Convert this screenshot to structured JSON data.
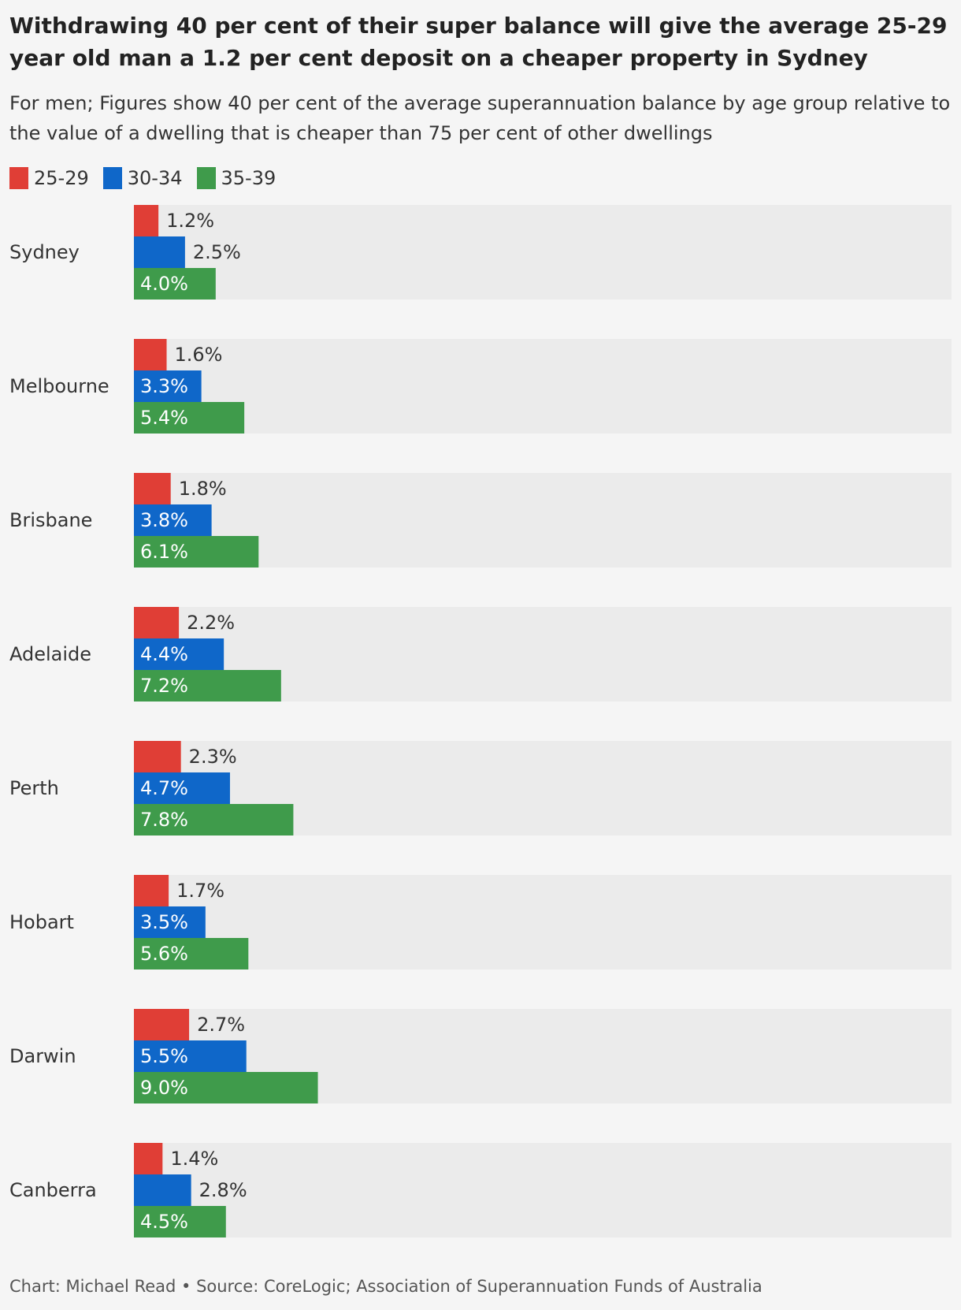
{
  "title": "Withdrawing 40 per cent of their super balance will give the average 25-29 year old man a 1.2 per cent deposit on a cheaper property in Sydney",
  "subtitle": "For men; Figures show 40 per cent of the average superannuation balance by age group relative to the value of a dwelling that is cheaper than 75 per cent of other dwellings",
  "footer": "Chart: Michael Read • Source: CoreLogic; Association of Superannuation Funds of Australia",
  "colors": {
    "track": "#ebebeb",
    "series": [
      "#e03e36",
      "#0f67c9",
      "#3f9b4b"
    ]
  },
  "chart_data": {
    "type": "bar",
    "orientation": "horizontal",
    "grid": false,
    "legend_position": "top-left",
    "xlim": [
      0,
      40
    ],
    "value_suffix": "%",
    "categories": [
      "Sydney",
      "Melbourne",
      "Brisbane",
      "Adelaide",
      "Perth",
      "Hobart",
      "Darwin",
      "Canberra"
    ],
    "series": [
      {
        "name": "25-29",
        "values": [
          1.2,
          1.6,
          1.8,
          2.2,
          2.3,
          1.7,
          2.7,
          1.4
        ]
      },
      {
        "name": "30-34",
        "values": [
          2.5,
          3.3,
          3.8,
          4.4,
          4.7,
          3.5,
          5.5,
          2.8
        ]
      },
      {
        "name": "35-39",
        "values": [
          4.0,
          5.4,
          6.1,
          7.2,
          7.8,
          5.6,
          9.0,
          4.5
        ]
      }
    ]
  }
}
